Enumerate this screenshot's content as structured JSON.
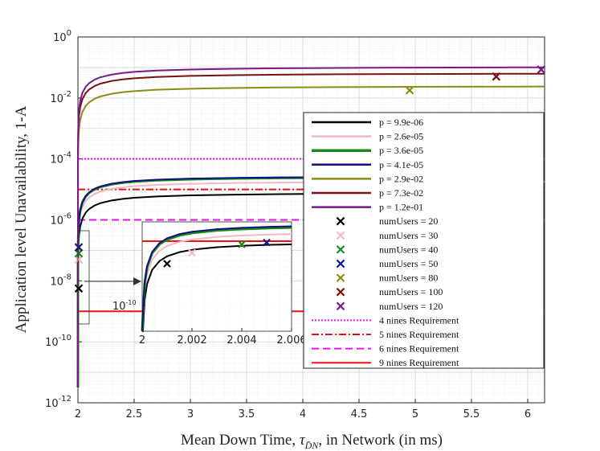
{
  "chart_data": {
    "type": "line",
    "title": "",
    "xlabel": "Mean Down Time, τD̄N, in Network (in ms)",
    "xlabel_prefix": "Mean Down Time,",
    "xlabel_symbol": "τ",
    "xlabel_sub": "D̄N",
    "xlabel_suffix": ", in Network (in ms)",
    "ylabel": "Application level Unavailability, 1-A",
    "xlim": [
      2,
      6.15
    ],
    "ylim_exp": [
      -12,
      0
    ],
    "yscale": "log",
    "grid": true,
    "x_ticks": [
      "2",
      "2.5",
      "3",
      "3.5",
      "4",
      "4.5",
      "5",
      "5.5",
      "6"
    ],
    "x_tick_values": [
      2,
      2.5,
      3,
      3.5,
      4,
      4.5,
      5,
      5.5,
      6
    ],
    "y_tick_exponents": [
      -12,
      -10,
      -8,
      -6,
      -4,
      -2,
      0
    ],
    "y_tick_mantissa": "10",
    "series": [
      {
        "name": "p = 9.9e-06",
        "color": "#000000",
        "asymptote_log10": -5.1,
        "width": 2
      },
      {
        "name": "p = 2.6e-05",
        "color": "#f4b8c2",
        "asymptote_log10": -4.72,
        "width": 2
      },
      {
        "name": "p = 3.6e-05",
        "color": "#1a8a1a",
        "asymptote_log10": -4.57,
        "width": 3
      },
      {
        "name": "p = 4.1e-05",
        "color": "#101080",
        "asymptote_log10": -4.55,
        "width": 2
      },
      {
        "name": "p = 2.9e-02",
        "color": "#8c8c10",
        "asymptote_log10": -1.6,
        "width": 2
      },
      {
        "name": "p = 7.3e-02",
        "color": "#7a1010",
        "asymptote_log10": -1.18,
        "width": 2
      },
      {
        "name": "p = 1.2e-01",
        "color": "#7a1a8a",
        "asymptote_log10": -0.97,
        "width": 2
      }
    ],
    "markers": [
      {
        "name": "numUsers = 20",
        "color": "#000000",
        "points": [
          [
            2.0,
            -8.25
          ],
          [
            2.001,
            -9.35
          ]
        ]
      },
      {
        "name": "numUsers = 30",
        "color": "#f4b8c2",
        "points": [
          [
            2.0,
            -7.3
          ],
          [
            2.002,
            -9.18
          ]
        ]
      },
      {
        "name": "numUsers = 40",
        "color": "#1a8a1a",
        "points": [
          [
            2.0,
            -7.1
          ],
          [
            2.004,
            -9.05
          ]
        ]
      },
      {
        "name": "numUsers = 50",
        "color": "#101080",
        "points": [
          [
            2.0,
            -6.9
          ],
          [
            2.005,
            -9.02
          ]
        ]
      },
      {
        "name": "numUsers = 80",
        "color": "#8c8c10",
        "points": [
          [
            4.95,
            -1.75
          ]
        ]
      },
      {
        "name": "numUsers = 100",
        "color": "#7a1010",
        "points": [
          [
            5.72,
            -1.3
          ]
        ]
      },
      {
        "name": "numUsers = 120",
        "color": "#7a1a8a",
        "points": [
          [
            6.12,
            -1.07
          ]
        ]
      }
    ],
    "requirements": [
      {
        "name": "4 nines Requirement",
        "color": "#ee11ee",
        "value_log10": -4,
        "dash": "2 2"
      },
      {
        "name": "5 nines Requirement",
        "color": "#dd1111",
        "value_log10": -5,
        "dash": "9 3 2 3"
      },
      {
        "name": "6 nines Requirement",
        "color": "#ee11ee",
        "value_log10": -6,
        "dash": "9 5"
      },
      {
        "name": "9 nines Requirement",
        "color": "#ee1111",
        "value_log10": -9,
        "dash": ""
      }
    ],
    "inset": {
      "xlim": [
        2,
        2.006
      ],
      "x_ticks": [
        "2",
        "2.002",
        "2.004",
        "2.006"
      ],
      "x_tick_values": [
        2,
        2.002,
        2.004,
        2.006
      ],
      "y_tick_label_mantissa": "10",
      "y_tick_label_exponent": "-10",
      "y_tick_exponent": -10,
      "ylim_exp": [
        -10.4,
        -8.7
      ]
    }
  }
}
